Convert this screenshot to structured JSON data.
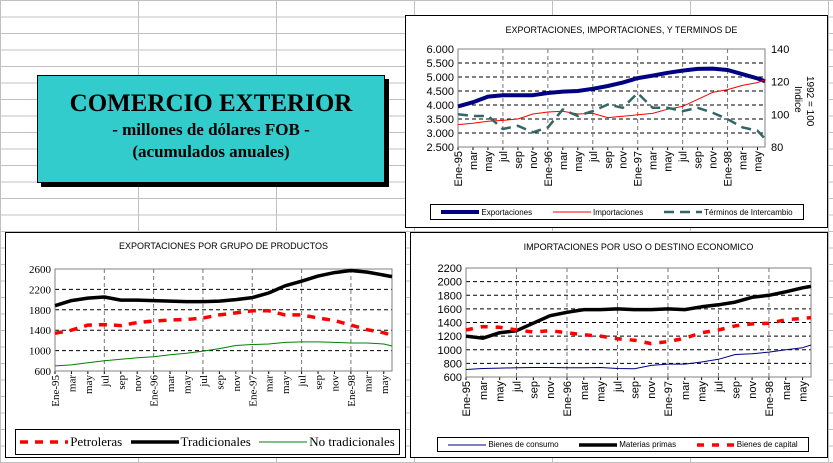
{
  "banner": {
    "title": "COMERCIO EXTERIOR",
    "subtitle": "- millones de dólares  FOB -",
    "note": "(acumulados anuales)"
  },
  "chart_data": [
    {
      "type": "line",
      "title": "EXPORTACIONES, IMPORTACIONES, Y TERMINOS DE",
      "x_tick_labels": [
        "Ene-95",
        "mar",
        "may",
        "jul",
        "sep",
        "nov",
        "Ene-96",
        "mar",
        "may",
        "jul",
        "sep",
        "nov",
        "Ene-97",
        "mar",
        "may",
        "jul",
        "sep",
        "nov",
        "Ene-98",
        "mar",
        "may"
      ],
      "y_ticks": [
        "2.500",
        "3.000",
        "3.500",
        "4.000",
        "4.500",
        "5.000",
        "5.500",
        "6.000"
      ],
      "ylim": [
        2500,
        6000
      ],
      "y2_ticks": [
        "80",
        "100",
        "120",
        "140"
      ],
      "y2lim": [
        80,
        140
      ],
      "y2label": "Indice 1992 = 100",
      "series": [
        {
          "name": "Exportaciones",
          "axis": "left",
          "color": "#000080",
          "values": [
            3950,
            4100,
            4300,
            4350,
            4350,
            4350,
            4430,
            4480,
            4500,
            4580,
            4680,
            4800,
            4960,
            5050,
            5150,
            5230,
            5290,
            5300,
            5250,
            5100,
            4950,
            4850
          ]
        },
        {
          "name": "Importaciones",
          "axis": "left",
          "color": "#ff0000",
          "values": [
            3300,
            3350,
            3420,
            3450,
            3500,
            3680,
            3750,
            3780,
            3680,
            3700,
            3550,
            3600,
            3650,
            3700,
            3850,
            3950,
            4200,
            4450,
            4550,
            4700,
            4800,
            4900
          ]
        },
        {
          "name": "Términos de Intercambio",
          "axis": "right",
          "color": "#336666",
          "values": [
            100,
            99,
            99,
            91,
            93,
            89,
            92,
            103,
            99,
            102,
            106,
            104,
            113,
            104,
            104,
            102,
            104,
            101,
            97,
            92,
            90,
            85
          ]
        }
      ]
    },
    {
      "type": "line",
      "title": "EXPORTACIONES POR GRUPO DE PRODUCTOS",
      "x_tick_labels": [
        "Ene-95",
        "mar",
        "may",
        "jul",
        "sep",
        "nov",
        "Ene-96",
        "mar",
        "may",
        "jul",
        "sep",
        "nov",
        "Ene-97",
        "mar",
        "may",
        "jul",
        "sep",
        "nov",
        "Ene-98",
        "mar",
        "may"
      ],
      "y_ticks": [
        "600",
        "1000",
        "1400",
        "1800",
        "2200",
        "2600"
      ],
      "ylim": [
        600,
        2600
      ],
      "series": [
        {
          "name": "Petroleras",
          "color": "#ff0000",
          "values": [
            1340,
            1400,
            1500,
            1510,
            1490,
            1550,
            1580,
            1600,
            1610,
            1640,
            1700,
            1740,
            1780,
            1780,
            1700,
            1700,
            1640,
            1590,
            1500,
            1410,
            1350,
            1300
          ]
        },
        {
          "name": "Tradicionales",
          "color": "#000000",
          "values": [
            1880,
            1980,
            2030,
            2050,
            1990,
            1990,
            1980,
            1970,
            1960,
            1960,
            1970,
            2000,
            2040,
            2130,
            2270,
            2360,
            2460,
            2530,
            2570,
            2540,
            2480,
            2450
          ]
        },
        {
          "name": "No tradicionales",
          "color": "#008000",
          "values": [
            700,
            720,
            760,
            800,
            830,
            860,
            880,
            920,
            950,
            990,
            1040,
            1100,
            1120,
            1130,
            1160,
            1170,
            1170,
            1160,
            1150,
            1150,
            1130,
            1090
          ]
        }
      ]
    },
    {
      "type": "line",
      "title": "IMPORTACIONES POR USO O DESTINO ECONOMICO",
      "x_tick_labels": [
        "Ene-95",
        "mar",
        "may",
        "jul",
        "sep",
        "nov",
        "Ene-96",
        "mar",
        "may",
        "jul",
        "sep",
        "nov",
        "Ene-97",
        "mar",
        "may",
        "jul",
        "sep",
        "nov",
        "Ene-98",
        "mar",
        "may"
      ],
      "y_ticks": [
        "600",
        "800",
        "1000",
        "1200",
        "1400",
        "1600",
        "1800",
        "2000",
        "2200"
      ],
      "ylim": [
        600,
        2200
      ],
      "series": [
        {
          "name": "Bienes de consumo",
          "color": "#000080",
          "values": [
            710,
            725,
            730,
            735,
            740,
            740,
            735,
            735,
            740,
            725,
            720,
            770,
            790,
            790,
            820,
            860,
            930,
            940,
            965,
            1000,
            1030,
            1070
          ]
        },
        {
          "name": "Materias primas",
          "color": "#000000",
          "values": [
            1200,
            1170,
            1250,
            1280,
            1390,
            1500,
            1550,
            1590,
            1590,
            1600,
            1590,
            1590,
            1600,
            1590,
            1630,
            1660,
            1700,
            1770,
            1800,
            1850,
            1910,
            1930
          ]
        },
        {
          "name": "Bienes de capital",
          "color": "#ff0000",
          "values": [
            1290,
            1340,
            1330,
            1290,
            1260,
            1280,
            1250,
            1220,
            1200,
            1160,
            1140,
            1090,
            1120,
            1170,
            1250,
            1290,
            1350,
            1380,
            1390,
            1440,
            1460,
            1470
          ]
        }
      ]
    }
  ]
}
